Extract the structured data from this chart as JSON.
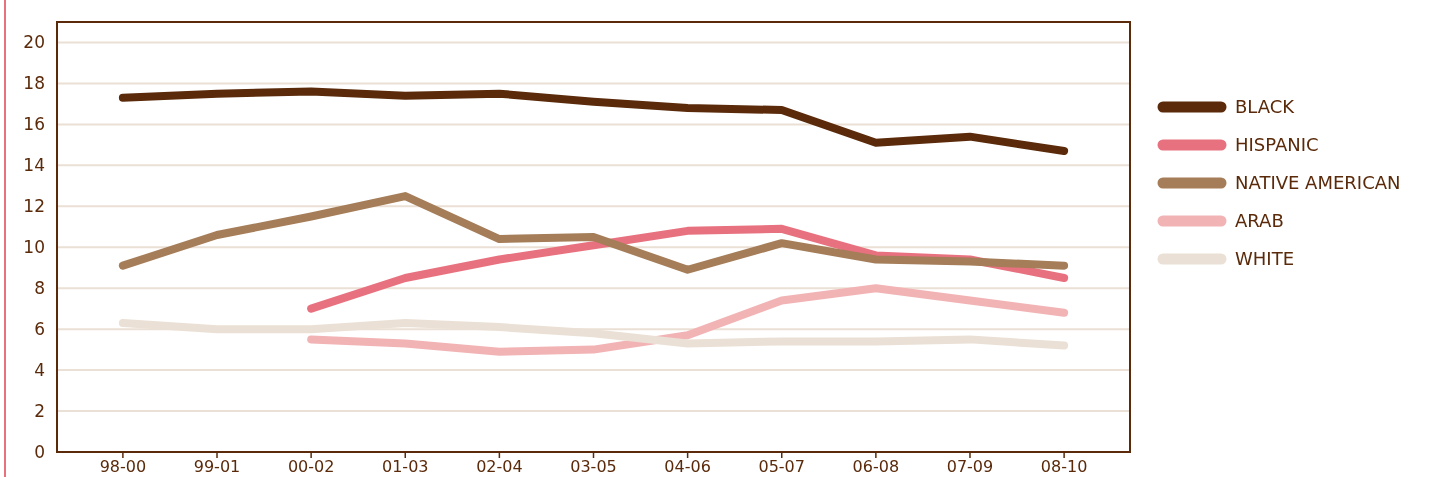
{
  "chart_data": {
    "type": "line",
    "categories": [
      "98-00",
      "99-01",
      "00-02",
      "01-03",
      "02-04",
      "03-05",
      "04-06",
      "05-07",
      "06-08",
      "07-09",
      "08-10"
    ],
    "series": [
      {
        "name": "BLACK",
        "color": "#5a2a0a",
        "values": [
          17.3,
          17.5,
          17.6,
          17.4,
          17.5,
          17.1,
          16.8,
          16.7,
          15.1,
          15.4,
          14.7
        ]
      },
      {
        "name": "HISPANIC",
        "color": "#e8717f",
        "values": [
          null,
          null,
          7.0,
          8.5,
          9.4,
          10.1,
          10.8,
          10.9,
          9.6,
          9.4,
          8.5
        ]
      },
      {
        "name": "NATIVE AMERICAN",
        "color": "#a57d58",
        "values": [
          9.1,
          10.6,
          11.5,
          12.5,
          10.4,
          10.5,
          8.9,
          10.2,
          9.4,
          9.3,
          9.1
        ]
      },
      {
        "name": "ARAB",
        "color": "#f2b3b5",
        "values": [
          null,
          null,
          5.5,
          5.3,
          4.9,
          5.0,
          5.7,
          7.4,
          8.0,
          7.4,
          6.8
        ]
      },
      {
        "name": "WHITE",
        "color": "#ebe0d5",
        "values": [
          6.3,
          6.0,
          6.0,
          6.3,
          6.1,
          5.8,
          5.3,
          5.4,
          5.4,
          5.5,
          5.2
        ]
      }
    ],
    "ylim": [
      0,
      21
    ],
    "yticks": [
      0,
      2,
      4,
      6,
      8,
      10,
      12,
      14,
      16,
      18,
      20
    ],
    "grid": "y",
    "legend": "right",
    "marker": "none",
    "line_style": "solid"
  }
}
